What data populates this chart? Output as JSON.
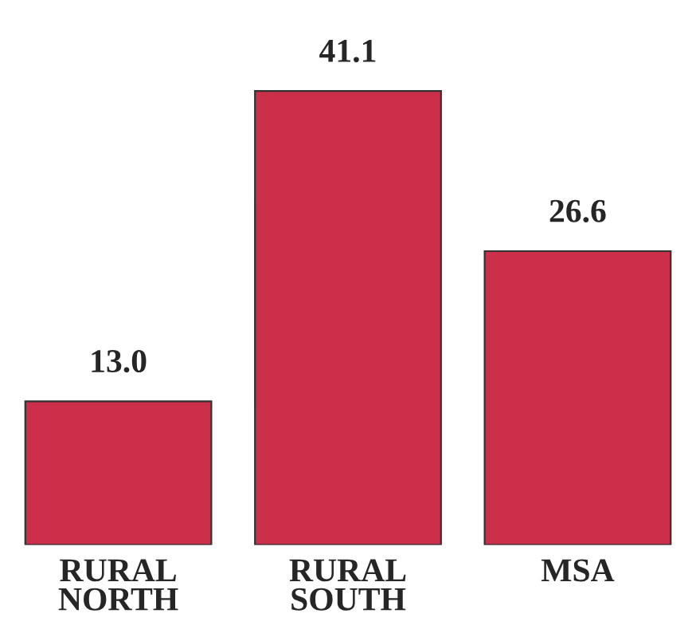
{
  "chart_data": {
    "type": "bar",
    "categories": [
      "RURAL\nNORTH",
      "RURAL\nSOUTH",
      "MSA"
    ],
    "values": [
      13.0,
      41.1,
      26.6
    ],
    "value_labels": [
      "13.0",
      "41.1",
      "26.6"
    ],
    "color": "#cc2f4a",
    "grid": false,
    "legend": false
  }
}
